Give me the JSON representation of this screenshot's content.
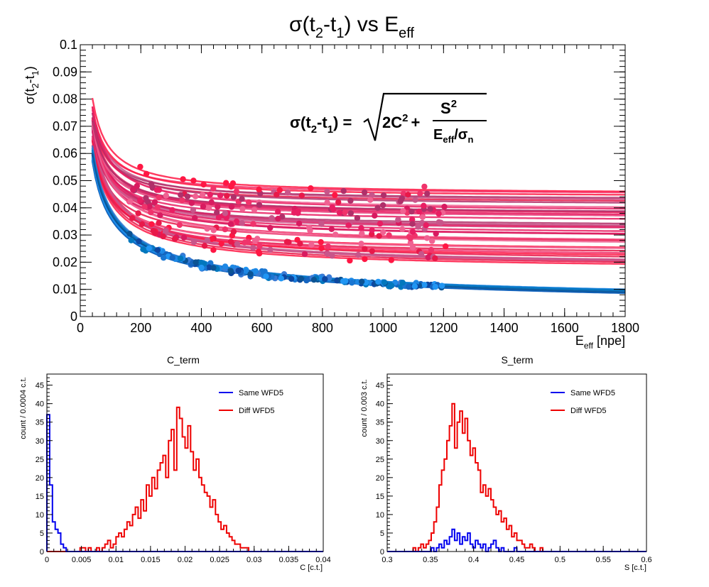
{
  "colors": {
    "same": "#0000ee",
    "diff": "#ee0000",
    "reds": [
      "#e8194a",
      "#f0336b",
      "#c8558a",
      "#ff1744",
      "#d81b60",
      "#f06292",
      "#e91e63",
      "#b0306a"
    ],
    "blues": [
      "#1565c0",
      "#1e88e5",
      "#0d47a1",
      "#0277bd",
      "#2196f3",
      "#0b5394",
      "#1976d2",
      "#3a7bd5"
    ]
  },
  "chart_data": [
    {
      "id": "main",
      "type": "scatter",
      "title": {
        "base": "σ(t",
        "sub1": "2",
        "mid": "-t",
        "sub2": "1",
        "end": ") vs E",
        "sub3": "eff"
      },
      "ylabel": {
        "base": "σ(t",
        "sub1": "2",
        "mid": "-t",
        "sub2": "1",
        "end": ")"
      },
      "xlabel": {
        "base": "E",
        "sub": "eff",
        "end": " [npe]"
      },
      "formula": {
        "lhs_base": "σ(t",
        "lhs_sub1": "2",
        "lhs_mid": "-t",
        "lhs_sub2": "1",
        "lhs_end": ") =",
        "c_term": "2C",
        "c_sup": "2",
        "plus": "+",
        "num": "S",
        "num_sup": "2",
        "den_base": "E",
        "den_sub": "eff",
        "den_slash": "/σ",
        "den_sub2": "n"
      },
      "xlim": [
        0,
        1800
      ],
      "ylim": [
        0,
        0.1
      ],
      "xticks": [
        "0",
        "200",
        "400",
        "600",
        "800",
        "1000",
        "1200",
        "1400",
        "1600",
        "1800"
      ],
      "yticks": [
        "0",
        "0.01",
        "0.02",
        "0.03",
        "0.04",
        "0.05",
        "0.06",
        "0.07",
        "0.08",
        "0.09",
        "0.1"
      ],
      "curve_groups": {
        "red": {
          "C_range": [
            0.012,
            0.032
          ],
          "S_range": [
            0.37,
            0.43
          ],
          "count": 40
        },
        "blue": {
          "C_range": [
            0.0,
            0.003
          ],
          "S_range": [
            0.36,
            0.4
          ],
          "count": 30
        }
      }
    },
    {
      "id": "c_term",
      "type": "histogram",
      "title": "C_term",
      "xlabel": "C [c.t.]",
      "ylabel": "count / 0.0004 c.t.",
      "xlim": [
        0,
        0.04
      ],
      "ylim": [
        0,
        48
      ],
      "xticks": [
        "0",
        "0.005",
        "0.01",
        "0.015",
        "0.02",
        "0.025",
        "0.03",
        "0.035",
        "0.04"
      ],
      "yticks": [
        "0",
        "5",
        "10",
        "15",
        "20",
        "25",
        "30",
        "35",
        "40",
        "45"
      ],
      "bin_width": 0.0004,
      "series": [
        {
          "name": "Same WFD5",
          "color": "#0000ee",
          "values": [
            37,
            18,
            8,
            6,
            5,
            2,
            1,
            0,
            0,
            0,
            0,
            0,
            0,
            0,
            0,
            0,
            0,
            0,
            0,
            0,
            0,
            0,
            0,
            0,
            0,
            0,
            0,
            0,
            0,
            0,
            0,
            0,
            0,
            0,
            0,
            0,
            0,
            0,
            0,
            0,
            0,
            0,
            0,
            0,
            0,
            0,
            0,
            0,
            0,
            0,
            0,
            0,
            0,
            0,
            0,
            0,
            0,
            0,
            0,
            0,
            0,
            0,
            0,
            0,
            0,
            0,
            0,
            0,
            0,
            0,
            0,
            0,
            0,
            0,
            0,
            0,
            0,
            0,
            0,
            0,
            0,
            0,
            0,
            0,
            0,
            0,
            0,
            0,
            0,
            0,
            0,
            0,
            0,
            0,
            0,
            0,
            0,
            0,
            0,
            0
          ]
        },
        {
          "name": "Diff WFD5",
          "color": "#ee0000",
          "values": [
            0,
            0,
            0,
            0,
            0,
            0,
            0,
            0,
            0,
            0,
            0,
            0,
            1,
            1,
            0,
            1,
            0,
            0,
            1,
            0,
            1,
            2,
            3,
            1,
            2,
            4,
            5,
            4,
            6,
            8,
            7,
            10,
            12,
            9,
            14,
            11,
            18,
            15,
            20,
            17,
            22,
            24,
            26,
            20,
            30,
            33,
            22,
            39,
            36,
            31,
            28,
            34,
            27,
            22,
            25,
            20,
            18,
            16,
            15,
            12,
            14,
            10,
            8,
            6,
            7,
            5,
            4,
            3,
            2,
            2,
            1,
            1,
            1,
            0,
            0,
            0,
            0,
            0,
            0,
            0,
            0,
            0,
            0,
            0,
            0,
            0,
            0,
            0,
            0,
            0,
            0,
            0,
            0,
            0,
            0,
            0,
            0,
            0,
            0,
            0
          ]
        }
      ]
    },
    {
      "id": "s_term",
      "type": "histogram",
      "title": "S_term",
      "xlabel": "S [c.t.]",
      "ylabel": "count / 0.003 c.t.",
      "xlim": [
        0.3,
        0.6
      ],
      "ylim": [
        0,
        48
      ],
      "xticks": [
        "0.3",
        "0.35",
        "0.4",
        "0.45",
        "0.5",
        "0.55",
        "0.6"
      ],
      "yticks": [
        "0",
        "5",
        "10",
        "15",
        "20",
        "25",
        "30",
        "35",
        "40",
        "45"
      ],
      "bin_width": 0.003,
      "series": [
        {
          "name": "Same WFD5",
          "color": "#0000ee",
          "values": [
            0,
            0,
            0,
            0,
            0,
            0,
            0,
            0,
            0,
            0,
            0,
            0,
            0,
            0,
            0,
            0,
            0,
            1,
            0,
            1,
            2,
            1,
            3,
            2,
            4,
            6,
            3,
            5,
            2,
            4,
            3,
            5,
            2,
            1,
            3,
            2,
            1,
            2,
            0,
            1,
            2,
            3,
            1,
            0,
            1,
            0,
            0,
            0,
            0,
            1,
            0,
            0,
            0,
            0,
            0,
            0,
            0,
            0,
            0,
            0,
            0,
            0,
            0,
            0,
            0,
            0,
            0,
            0,
            0,
            0,
            0,
            0,
            0,
            0,
            0,
            0,
            0,
            0,
            0,
            0,
            0,
            0,
            0,
            0,
            0,
            0,
            0,
            0,
            0,
            0,
            0,
            0,
            0,
            0,
            0,
            0,
            0,
            0,
            0,
            0
          ]
        },
        {
          "name": "Diff WFD5",
          "color": "#ee0000",
          "values": [
            0,
            0,
            0,
            0,
            0,
            0,
            0,
            0,
            0,
            0,
            1,
            0,
            1,
            2,
            1,
            2,
            3,
            5,
            8,
            12,
            18,
            22,
            25,
            30,
            34,
            40,
            28,
            35,
            38,
            32,
            36,
            30,
            26,
            28,
            24,
            22,
            16,
            18,
            15,
            17,
            14,
            12,
            10,
            11,
            8,
            9,
            6,
            7,
            4,
            5,
            3,
            3,
            2,
            1,
            1,
            2,
            1,
            0,
            0,
            1,
            0,
            0,
            0,
            0,
            0,
            0,
            0,
            0,
            0,
            0,
            0,
            0,
            0,
            0,
            0,
            0,
            0,
            0,
            0,
            0,
            0,
            0,
            0,
            0,
            0,
            0,
            0,
            0,
            0,
            0,
            0,
            0,
            0,
            0,
            0,
            0,
            0,
            0,
            0,
            0
          ]
        }
      ]
    }
  ]
}
